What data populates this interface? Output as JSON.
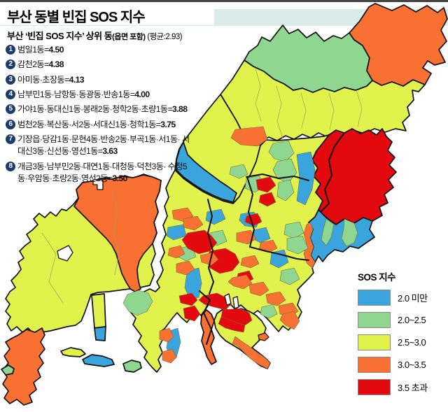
{
  "header": {
    "title": "부산 동별 빈집 SOS 지수",
    "subtitle_main": "부산 ‘빈집 SOS 지수’ 상위 동",
    "subtitle_note": "(읍면 포함)",
    "subtitle_avg": " (평균:2.93)"
  },
  "ranking": {
    "items": [
      {
        "rank": "1",
        "label": "범일1동=",
        "value": "4.50"
      },
      {
        "rank": "2",
        "label": "감천2동=",
        "value": "4.38"
      },
      {
        "rank": "3",
        "label": "아미동·초장동=",
        "value": "4.13"
      },
      {
        "rank": "4",
        "label": "남부민1동·남항동·동광동·반송1동=",
        "value": "4.00"
      },
      {
        "rank": "5",
        "label": "가야1동·동대신1동·봉래2동·청학2동·초량1동=",
        "value": "3.88"
      },
      {
        "rank": "6",
        "label": "범천2동·복산동·서2동·서대신1동·청학1동=",
        "value": "3.75"
      },
      {
        "rank": "7",
        "label": "기장읍·당감1동·문현4동·반송2동·부곡1동·서1동· 서대신3동·신선동·영선1동=",
        "value": "3.63"
      },
      {
        "rank": "8",
        "label": "개금3동·남부민2동·대연1동·대청동·덕천3동· 수정5동·우암동·초량2동·영선2동=",
        "value": "3.50"
      }
    ]
  },
  "legend": {
    "title": "SOS 지수",
    "items": [
      {
        "label": "2.0 미만",
        "color": "#3AA5DC"
      },
      {
        "label": "2.0~2.5",
        "color": "#8FD690"
      },
      {
        "label": "2.5~3.0",
        "color": "#E1F24C"
      },
      {
        "label": "3.0~3.5",
        "color": "#F97132"
      },
      {
        "label": "3.5 초과",
        "color": "#E20A0E"
      }
    ]
  },
  "colors": {
    "band": "#D9ECE9",
    "badge": "#1E3A6E",
    "coast": "#111111"
  },
  "map": {
    "palette": {
      "b": "#3AA5DC",
      "g": "#8FD690",
      "y": "#E1F24C",
      "o": "#F97132",
      "r": "#E20A0E",
      "w": "#FFFFFF"
    },
    "regions": [
      {
        "n": "gangseo-base",
        "c": "y",
        "s": "major",
        "p": "95,298 104,290 112,280 109,268 118,258 131,258 138,260 152,250 166,256 178,248 190,252 205,246 218,250 230,255 228,270 222,285 226,300 220,315 224,330 218,345 222,360 216,375 220,390 214,405 200,408 185,410 170,412 155,414 140,415 130,418 126,430 121,444 116,456 108,462 96,464 84,467 72,470 60,472 48,474 40,466 32,472 24,464 16,470 10,460 15,450 8,442 14,432 8,424 14,414 22,408 16,398 24,390 30,382 26,372 34,366 28,356 36,348 44,342 38,332 46,326 54,318 48,310 56,302 64,308 72,300 80,306 88,296"
      },
      {
        "n": "gangseo-north",
        "c": "o",
        "s": "major",
        "p": "118,258 131,256 145,252 160,253 175,249 190,251 205,247 218,250 230,255 228,270 222,285 226,300 220,315 224,330 218,345 212,352 205,360 199,370 196,382 197,394 199,404 201,410 193,414 186,410 180,400 174,388 170,374 166,360 160,348 152,338 144,330 136,322 128,314 120,306 112,298 106,292 112,281 109,268"
      },
      {
        "n": "gangseo-notch",
        "c": "w",
        "s": "water",
        "p": "133,254 147,254 147,268 139,268 139,261 133,261"
      },
      {
        "n": "gangseo-inlet",
        "c": "w",
        "s": "water",
        "p": "82,356 98,348 104,358 96,370 84,366"
      },
      {
        "n": "gadeokdo",
        "c": "o",
        "s": "major",
        "p": "26,476 38,468 50,472 60,466 64,476 58,486 64,496 56,506 62,516 54,526 58,536 48,544 52,554 42,562 46,572 34,576 24,568 14,574 6,566 12,556 4,546 10,536 4,526 12,516 6,506 14,496 8,486 18,480"
      },
      {
        "n": "delta-strip-yellow",
        "c": "y",
        "s": "major",
        "p": "131,419 149,417 151,464 135,466"
      },
      {
        "n": "delta-strip-blue",
        "c": "b",
        "s": "major",
        "p": "135,466 151,464 150,484 137,483"
      },
      {
        "n": "eulsukdo",
        "c": "b",
        "s": "major",
        "p": "118,511 131,504 146,506 160,511 163,518 149,521 134,519 121,517"
      },
      {
        "n": "myeongji-sliver",
        "c": "y",
        "s": "major",
        "p": "87,499 101,494 116,497 122,503 114,507 99,506 90,504"
      },
      {
        "n": "green-sliver",
        "c": "g",
        "s": "major",
        "p": "176,517 188,512 200,515 202,523 191,529 179,527"
      },
      {
        "n": "green-sliver-sw",
        "c": "g",
        "s": "major",
        "p": "2,525 12,519 20,524 18,531 8,533"
      },
      {
        "n": "geumjeong",
        "c": "y",
        "s": "major",
        "p": "349,83 362,92 377,99 391,110 406,117 419,126 432,123 447,129 462,123 478,128 492,122 508,126 524,120 532,112 545,119 560,114 576,120 590,111 607,118 598,128 589,126 591,140 582,150 585,162 575,172 580,184 565,181 550,186 535,181 520,188 505,183 490,190 478,185 466,192 455,187 444,194 432,189 420,196 408,191 396,198 384,193 372,200 360,196 348,190 338,170 326,150 315,132 332,110"
      },
      {
        "n": "cheolma",
        "c": "g",
        "s": "major",
        "p": "499,44 506,54 518,62 528,80 524,98 532,112 524,120 508,126 492,122 478,128 462,123 447,129 432,123 419,126 406,117 391,110 377,99 362,92 349,83 356,71 368,62 374,50 386,56 396,43 404,33 413,45 426,39 438,51 451,43 463,56 476,48 488,52"
      },
      {
        "n": "gijang-north",
        "c": "o",
        "s": "major",
        "p": "536,2 560,12 577,4 594,14 610,5 625,15 634,8 639,24 630,40 638,56 627,68 636,86 621,90 611,84 604,94 616,102 607,118 590,111 576,120 560,114 545,119 532,112 524,98 528,80 518,62 506,54 499,44 514,27 527,7"
      },
      {
        "n": "bukgu",
        "c": "y",
        "s": "major",
        "p": "263,198 280,176 297,154 315,132 326,150 338,170 348,190 360,196 372,205 366,228 358,246 350,262 342,278 333,288 318,284 304,278 290,271 276,262 262,252 250,240 252,224 256,210"
      },
      {
        "n": "hwamyeong-blue",
        "c": "b",
        "s": "major",
        "p": "262,200 268,218 278,228 290,238 302,247 314,256 326,264 338,273 333,286 318,282 304,276 290,269 276,260 262,250 252,240 252,226 256,212"
      },
      {
        "n": "central",
        "c": "y",
        "s": "major",
        "p": "250,240 262,252 276,262 290,271 304,278 318,284 333,288 342,278 350,262 358,246 366,228 372,205 380,197 396,198 420,196 444,194 462,192 470,190 460,203 452,213 446,226 454,237 448,249 458,260 451,272 461,284 455,297 450,307 441,315 447,325 443,337 448,350 444,362 450,372 446,380 448,387 441,395 433,403 425,411 429,421 425,433 431,443 426,453 419,461 412,469 404,463 398,471 391,463 384,455 376,447 368,441 360,447 352,440 344,433 336,439 329,432 322,425 314,431 307,424 299,431 293,440 287,448 281,441 274,449 267,458 259,451 253,444 247,451 241,459 235,467 229,471 233,481 228,491 232,501 226,511 230,521 224,529 218,523 212,516 206,508 210,500 204,493 198,485 202,477 196,469 190,461 194,452 188,445 182,437 180,428 186,421 196,417 206,414 214,410 222,414 228,408 224,400 229,392 233,383 229,371 235,358 231,345 237,332 233,319 239,306 235,292 241,279 237,266 243,253"
      },
      {
        "n": "haeundae-red",
        "c": "r",
        "s": "major",
        "p": "470,190 480,183 492,187 503,181 515,188 527,183 538,190 546,181 552,192 560,200 554,212 564,222 556,233 566,243 555,254 562,265 549,275 554,287 542,293 546,305 532,313 519,308 506,316 492,310 480,318 466,308 455,297 461,284 451,272 458,260 448,249 454,237 446,226 452,213 460,203"
      },
      {
        "n": "haeundae-divider",
        "s": "line",
        "p": "492,187 478,206 470,226 474,248 464,268 470,288 459,299"
      },
      {
        "n": "udong-blue",
        "c": "b",
        "s": "major",
        "p": "450,307 455,297 466,308 480,318 492,310 506,316 519,308 532,313 528,325 535,336 522,345 512,352 500,349 490,357 478,354 468,362 461,371 455,363 450,372 444,362 448,350 443,337 447,325 441,315"
      },
      {
        "n": "udong-green-a",
        "c": "g",
        "s": "cell",
        "p": "492,310 506,316 511,330 506,344 495,349 488,338 491,324"
      },
      {
        "n": "udong-green-b",
        "c": "g",
        "s": "cell",
        "p": "466,310 477,318 473,336 466,348 459,340 462,324"
      },
      {
        "n": "suyeong-orange",
        "c": "o",
        "s": "cell",
        "p": "443,315 447,325 443,337 448,350 444,362 450,372 446,380 438,373 434,360 438,346 434,331 438,318"
      },
      {
        "n": "yeongdo",
        "c": "y",
        "s": "major",
        "p": "310,445 320,438 332,442 344,438 356,442 366,448 374,456 380,466 376,478 368,486 360,494 368,500 378,508 386,516 382,524 372,520 362,512 352,504 342,496 332,490 322,484 314,476 308,466 306,455"
      },
      {
        "n": "yeongdo-red1",
        "c": "r",
        "s": "cell",
        "p": "318,440 344,438 356,444 360,455 350,462 338,458 326,454 316,450"
      },
      {
        "n": "yeongdo-red2",
        "c": "r",
        "s": "cell",
        "p": "316,450 338,458 350,462 348,472 336,470 322,466 312,460"
      },
      {
        "n": "yeongdo-orange-tail",
        "c": "o",
        "s": "cell",
        "p": "344,484 356,492 366,500 378,508 386,516 382,524 370,518 358,510 348,500 340,492 332,488 336,478"
      },
      {
        "n": "amnam-peninsula",
        "c": "o",
        "s": "major",
        "p": "288,448 295,440 302,446 306,456 302,468 306,480 301,492 305,504 309,514 302,518 296,508 292,496 288,484 291,472 287,460"
      },
      {
        "n": "b-cell-1",
        "c": "b",
        "s": "cell",
        "p": "296,300 316,296 322,310 306,318 294,312"
      },
      {
        "n": "b-cell-2",
        "c": "b",
        "s": "cell",
        "p": "240,322 262,318 266,334 248,340 238,334"
      },
      {
        "n": "b-cell-3",
        "c": "b",
        "s": "cell",
        "p": "344,303 362,300 372,308 366,322 350,320 342,312"
      },
      {
        "n": "b-cell-4",
        "c": "b",
        "s": "cell",
        "p": "268,384 284,380 288,402 284,422 272,426 264,408 266,394"
      },
      {
        "n": "b-cell-5",
        "c": "b",
        "s": "cell",
        "p": "388,358 406,354 412,372 398,380 386,374"
      },
      {
        "n": "b-cell-6",
        "c": "b",
        "s": "cell",
        "p": "424,218 444,214 450,240 446,268 436,290 424,284 428,252"
      },
      {
        "n": "b-cell-7",
        "c": "b",
        "s": "cell",
        "p": "242,470 254,466 258,486 252,508 244,514 238,494 240,480"
      },
      {
        "n": "b-cell-8",
        "c": "b",
        "s": "cell",
        "p": "362,326 380,322 386,338 372,344 360,338"
      },
      {
        "n": "g-cell-1",
        "c": "g",
        "s": "cell",
        "p": "390,202 412,198 420,216 408,228 392,224 384,214"
      },
      {
        "n": "g-cell-2",
        "c": "g",
        "s": "cell",
        "p": "396,228 416,224 424,244 412,258 396,252 390,240"
      },
      {
        "n": "g-cell-3",
        "c": "g",
        "s": "cell",
        "p": "398,258 414,254 420,272 408,284 396,278"
      },
      {
        "n": "g-cell-4",
        "c": "g",
        "s": "cell",
        "p": "300,330 318,326 324,342 310,348 298,342"
      },
      {
        "n": "g-cell-5",
        "c": "g",
        "s": "cell",
        "p": "256,352 274,348 280,364 266,370 254,364"
      },
      {
        "n": "g-cell-6",
        "c": "g",
        "s": "cell",
        "p": "408,318 428,314 434,330 420,338 406,332"
      },
      {
        "n": "g-cell-7",
        "c": "g",
        "s": "cell",
        "p": "410,338 432,334 440,352 426,360 410,354"
      },
      {
        "n": "g-cell-8",
        "c": "g",
        "s": "cell",
        "p": "402,384 420,380 428,396 414,404 400,398"
      },
      {
        "n": "g-cell-9",
        "c": "g",
        "s": "cell",
        "p": "182,418 198,412 212,416 218,428 210,442 196,448 184,442 176,430"
      },
      {
        "n": "g-cell-10",
        "c": "g",
        "s": "cell",
        "p": "352,252 370,248 378,264 364,272 350,266"
      },
      {
        "n": "g-cell-11",
        "c": "g",
        "s": "cell",
        "p": "330,236 348,232 354,246 342,252 328,246"
      },
      {
        "n": "g-cell-12",
        "c": "g",
        "s": "cell",
        "p": "374,436 390,432 396,446 384,452 372,446"
      },
      {
        "n": "r-cell-1",
        "c": "r",
        "s": "cell",
        "p": "366,254 386,250 394,262 382,272 368,268"
      },
      {
        "n": "r-cell-2",
        "c": "r",
        "s": "cell",
        "p": "372,276 388,272 394,286 382,292 370,286"
      },
      {
        "n": "r-cell-3",
        "c": "r",
        "s": "cell",
        "p": "268,330 292,326 302,334 310,344 300,356 284,360 268,352 260,340"
      },
      {
        "n": "r-cell-4",
        "c": "r",
        "s": "cell",
        "p": "300,356 322,352 336,360 342,372 332,384 314,388 300,380 294,366"
      },
      {
        "n": "r-cell-5",
        "c": "r",
        "s": "cell",
        "p": "340,388 356,384 362,396 350,402 338,398"
      },
      {
        "n": "r-cell-6",
        "c": "r",
        "s": "cell",
        "p": "290,420 310,416 322,422 330,432 322,440 306,436 292,432 284,426"
      },
      {
        "n": "r-cell-7",
        "c": "r",
        "s": "cell",
        "p": "256,420 274,416 282,426 274,434 258,430"
      },
      {
        "n": "r-cell-8",
        "c": "r",
        "s": "cell",
        "p": "262,438 278,434 286,446 278,456 264,452"
      },
      {
        "n": "r-cell-9",
        "c": "r",
        "s": "cell",
        "p": "352,306 368,302 374,314 362,320 350,314"
      },
      {
        "n": "o-cell-1",
        "c": "o",
        "s": "cell",
        "p": "336,182 376,178 382,196 368,206 344,204 330,194"
      },
      {
        "n": "o-cell-2",
        "c": "o",
        "s": "cell",
        "p": "246,298 268,294 276,306 264,314 248,310"
      },
      {
        "n": "o-cell-3",
        "c": "o",
        "s": "cell",
        "p": "252,374 270,370 278,382 266,390 252,386"
      },
      {
        "n": "o-cell-4",
        "c": "o",
        "s": "cell",
        "p": "286,362 304,358 312,368 302,376 288,372"
      },
      {
        "n": "o-cell-5",
        "c": "o",
        "s": "cell",
        "p": "262,310 282,306 290,318 278,326 262,322"
      },
      {
        "n": "o-cell-6",
        "c": "o",
        "s": "cell",
        "p": "338,330 358,326 366,338 354,346 338,342"
      },
      {
        "n": "o-cell-7",
        "c": "o",
        "s": "cell",
        "p": "332,394 352,390 360,402 348,410 334,406 326,400"
      },
      {
        "n": "o-cell-8",
        "c": "o",
        "s": "cell",
        "p": "356,404 376,400 384,412 372,420 358,416"
      },
      {
        "n": "o-cell-9",
        "c": "o",
        "s": "cell",
        "p": "380,418 400,414 408,426 396,434 382,430"
      },
      {
        "n": "o-cell-10",
        "c": "o",
        "s": "cell",
        "p": "398,434 418,430 426,442 414,450 400,446"
      },
      {
        "n": "o-cell-11",
        "c": "o",
        "s": "cell",
        "p": "404,446 420,442 428,456 420,468 408,462 400,454"
      },
      {
        "n": "o-cell-12",
        "c": "o",
        "s": "cell",
        "p": "242,352 258,348 264,360 252,366 240,362"
      },
      {
        "n": "o-cell-13",
        "c": "o",
        "s": "cell",
        "p": "228,470 242,466 248,478 240,486 228,482"
      },
      {
        "n": "o-cell-14",
        "c": "o",
        "s": "cell",
        "p": "232,500 246,496 252,508 244,516 232,512"
      },
      {
        "n": "o-cell-15",
        "c": "o",
        "s": "cell",
        "p": "346,366 364,362 370,374 358,380 344,376"
      },
      {
        "n": "o-cell-16",
        "c": "o",
        "s": "cell",
        "p": "372,344 390,340 396,352 384,358 370,354"
      },
      {
        "n": "gu-line-a",
        "s": "line",
        "p": "297,282 303,306 297,330 304,355 298,380 305,400 299,417"
      },
      {
        "n": "gu-line-b",
        "s": "line",
        "p": "353,250 361,275 355,300 363,325 357,350"
      },
      {
        "n": "gu-line-c",
        "s": "line",
        "p": "352,250 375,246 398,252 420,249 441,255"
      },
      {
        "n": "gu-line-d",
        "s": "line",
        "p": "357,350 380,356 402,361 424,367 441,369"
      },
      {
        "n": "gu-line-e",
        "s": "line",
        "p": "285,413 300,426 291,444 302,468 295,489"
      },
      {
        "n": "dong-line-1",
        "s": "thin",
        "p": "365,95 372,120 365,145 373,170"
      },
      {
        "n": "dong-line-2",
        "s": "thin",
        "p": "395,120 402,145 396,170 404,195"
      },
      {
        "n": "dong-line-3",
        "s": "thin",
        "p": "430,130 437,155 431,180"
      },
      {
        "n": "dong-line-4",
        "s": "thin",
        "p": "470,130 477,155 471,182"
      },
      {
        "n": "dong-line-5",
        "s": "thin",
        "p": "510,128 517,152 511,178"
      },
      {
        "n": "dong-line-6",
        "s": "thin",
        "p": "160,270 168,300 162,330 170,360 164,390"
      },
      {
        "n": "dong-line-7",
        "s": "thin",
        "p": "60,330 80,360 70,400 90,430"
      },
      {
        "n": "harbor-pier-1",
        "c": "w",
        "s": "water",
        "p": "321,420 327,417 330,431 324,433"
      },
      {
        "n": "harbor-pier-2",
        "c": "w",
        "s": "water",
        "p": "333,423 339,421 341,436 335,438"
      },
      {
        "n": "small-isle",
        "c": "o",
        "s": "isle",
        "p": "369,476 379,473 384,479 378,484 370,482"
      }
    ]
  }
}
